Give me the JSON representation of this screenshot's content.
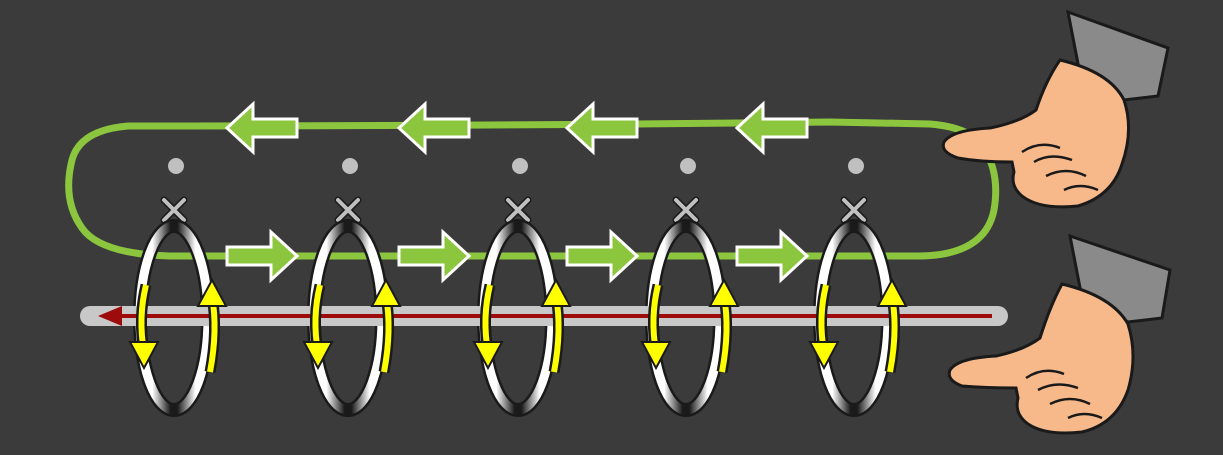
{
  "diagram": {
    "subject": "loop-coil-magnetic-field",
    "loop_count": 5,
    "colors": {
      "background": "#3b3b3b",
      "loop": "#8cc63f",
      "rod": "#c8c8c8",
      "current": "#9e0b0b",
      "field_arrow": "#ffff00",
      "ring": "#ffffff",
      "dot": "#c0c0c0",
      "skin": "#f8b98a",
      "sleeve": "#8a8a8a"
    },
    "icons": {
      "dot": "out-of-page-dot",
      "cross": "into-page-cross",
      "hand": "right-hand-pointing"
    }
  }
}
